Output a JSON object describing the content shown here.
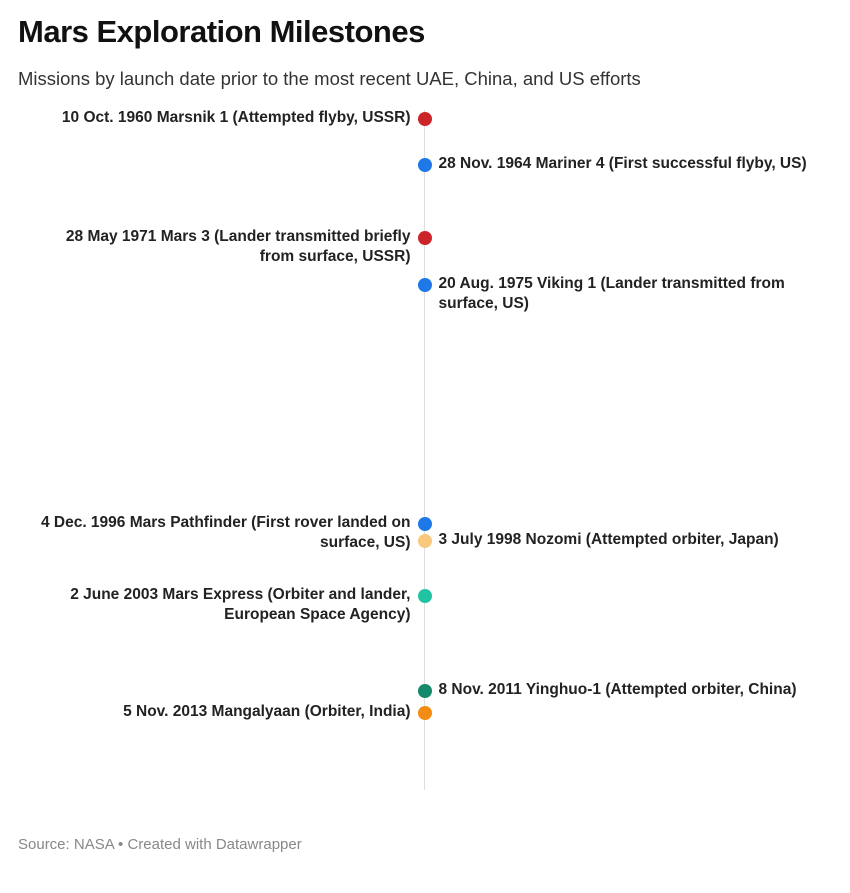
{
  "header": {
    "title": "Mars Exploration Milestones",
    "subtitle": "Missions by launch date prior to the most recent UAE, China, and US efforts"
  },
  "footer": {
    "source": "Source: NASA • Created with Datawrapper"
  },
  "chart_data": {
    "type": "scatter",
    "axis": "time",
    "ylim": [
      "1960-10-10",
      "2013-11-05"
    ],
    "grid": false,
    "events": [
      {
        "date": "1960-10-10",
        "label": "10 Oct. 1960 Marsnik 1 (Attempted flyby, USSR)",
        "side": "left",
        "color": "#cc2529"
      },
      {
        "date": "1964-11-28",
        "label": "28 Nov. 1964 Mariner 4 (First successful flyby, US)",
        "side": "right",
        "color": "#1f78e8"
      },
      {
        "date": "1971-05-28",
        "label": "28 May 1971 Mars 3 (Lander transmitted briefly from surface, USSR)",
        "side": "left",
        "color": "#cc2529"
      },
      {
        "date": "1975-08-20",
        "label": "20 Aug. 1975 Viking 1 (Lander transmitted from surface, US)",
        "side": "right",
        "color": "#1f78e8"
      },
      {
        "date": "1996-12-04",
        "label": "4 Dec. 1996 Mars Pathfinder (First rover landed on surface, US)",
        "side": "left",
        "color": "#1f78e8"
      },
      {
        "date": "1998-07-03",
        "label": "3 July 1998 Nozomi (Attempted orbiter, Japan)",
        "side": "right",
        "color": "#f8c97d"
      },
      {
        "date": "2003-06-02",
        "label": "2 June 2003 Mars Express (Orbiter and lander, European Space Agency)",
        "side": "left",
        "color": "#22c3a0"
      },
      {
        "date": "2011-11-08",
        "label": "8 Nov. 2011 Yinghuo-1 (Attempted orbiter, China)",
        "side": "right",
        "color": "#138a6a"
      },
      {
        "date": "2013-11-05",
        "label": "5 Nov. 2013 Mangalyaan (Orbiter, India)",
        "side": "left",
        "color": "#f38c12"
      }
    ]
  }
}
